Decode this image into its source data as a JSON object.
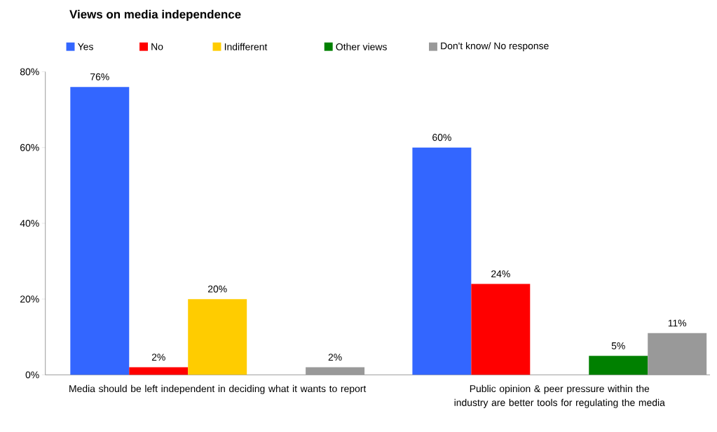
{
  "chart_data": {
    "type": "bar",
    "title": "Views on media independence",
    "categories": [
      "Media should be left independent in deciding what it wants to report",
      "Public opinion & peer pressure within the industry are better tools for regulating the media"
    ],
    "series": [
      {
        "name": "Yes",
        "color": "#3366ff",
        "values": [
          76,
          60
        ],
        "value_labels": [
          "76%",
          "60%"
        ]
      },
      {
        "name": "No",
        "color": "#ff0000",
        "values": [
          2,
          24
        ],
        "value_labels": [
          "2%",
          "24%"
        ]
      },
      {
        "name": "Indifferent",
        "color": "#ffcc00",
        "values": [
          20,
          null
        ],
        "value_labels": [
          "20%",
          null
        ]
      },
      {
        "name": "Other views",
        "color": "#008000",
        "values": [
          null,
          5
        ],
        "value_labels": [
          null,
          "5%"
        ]
      },
      {
        "name": "Don't know/ No response",
        "color": "#999999",
        "values": [
          2,
          11
        ],
        "value_labels": [
          "2%",
          "11%"
        ]
      }
    ],
    "ylim": [
      0,
      80
    ],
    "yticks": [
      {
        "value": 0,
        "label": "0%"
      },
      {
        "value": 20,
        "label": "20%"
      },
      {
        "value": 40,
        "label": "40%"
      },
      {
        "value": 60,
        "label": "60%"
      },
      {
        "value": 80,
        "label": "80%"
      }
    ],
    "grid": false,
    "legend": "top"
  }
}
